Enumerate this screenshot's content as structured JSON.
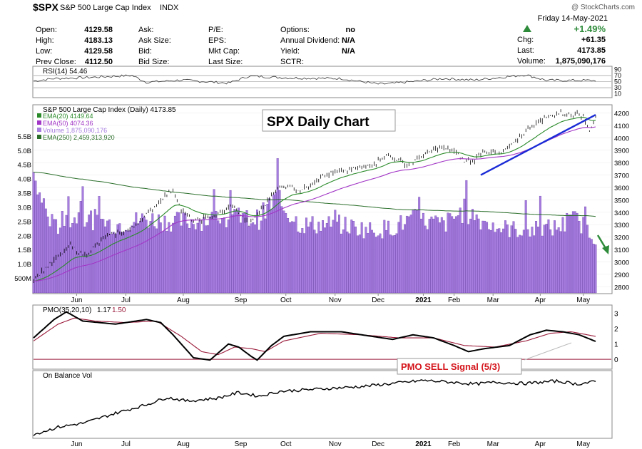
{
  "header": {
    "symbol": "$SPX",
    "name": "S&P 500 Large Cap Index",
    "exchange": "INDX",
    "source": "@ StockCharts.com",
    "date": "Friday  14-May-2021",
    "pct_change": "+1.49%",
    "chg_label": "Chg:",
    "chg": "+61.35",
    "last_label": "Last:",
    "last": "4173.85",
    "volume_label": "Volume:",
    "volume": "1,875,090,176",
    "col1": [
      [
        "Open:",
        "4129.58"
      ],
      [
        "High:",
        "4183.13"
      ],
      [
        "Low:",
        "4129.58"
      ],
      [
        "Prev Close:",
        "4112.50"
      ]
    ],
    "col2": [
      [
        "Ask:",
        ""
      ],
      [
        "Ask Size:",
        ""
      ],
      [
        "Bid:",
        ""
      ],
      [
        "Bid Size:",
        ""
      ]
    ],
    "col3": [
      [
        "P/E:",
        ""
      ],
      [
        "EPS:",
        ""
      ],
      [
        "Mkt Cap:",
        ""
      ],
      [
        "Last Size:",
        ""
      ]
    ],
    "col4": [
      [
        "Options:",
        "no"
      ],
      [
        "Annual Dividend:",
        "N/A"
      ],
      [
        "Yield:",
        "N/A"
      ],
      [
        "SCTR:",
        ""
      ]
    ],
    "up_color": "#2e8b3a"
  },
  "chart_data": [
    {
      "type": "line",
      "label": "RSI(14) 54.46",
      "ylim": [
        0,
        100
      ],
      "ticks": [
        "90",
        "70",
        "50",
        "30",
        "10"
      ],
      "reference_lines": [
        70,
        50,
        30
      ],
      "anchors": [
        [
          0,
          52
        ],
        [
          10,
          60
        ],
        [
          25,
          63
        ],
        [
          48,
          70
        ],
        [
          55,
          48
        ],
        [
          72,
          55
        ],
        [
          95,
          45
        ],
        [
          105,
          68
        ],
        [
          125,
          62
        ],
        [
          150,
          60
        ],
        [
          168,
          42
        ],
        [
          175,
          44
        ],
        [
          200,
          60
        ],
        [
          215,
          55
        ],
        [
          240,
          72
        ],
        [
          250,
          54
        ]
      ]
    },
    {
      "type": "line",
      "label": "S&P 500 Large Cap Index (Daily) 4173.85",
      "annotation": "SPX Daily Chart",
      "x_labels": [
        "Jun",
        "Jul",
        "Aug",
        "Sep",
        "Oct",
        "Nov",
        "Dec",
        "2021",
        "Feb",
        "Mar",
        "Apr",
        "May"
      ],
      "ylim": [
        2750,
        4260
      ],
      "y_ticks": [
        "4200",
        "4100",
        "4000",
        "3900",
        "3800",
        "3700",
        "3600",
        "3500",
        "3400",
        "3300",
        "3200",
        "3100",
        "3000",
        "2900",
        "2800"
      ],
      "volume_ylim": [
        0,
        6.6
      ],
      "volume_ticks": [
        [
          "5.5B",
          5.5
        ],
        [
          "5.0B",
          5.0
        ],
        [
          "4.5B",
          4.5
        ],
        [
          "4.0B",
          4.0
        ],
        [
          "3.5B",
          3.5
        ],
        [
          "3.0B",
          3.0
        ],
        [
          "2.5B",
          2.5
        ],
        [
          "2.0B",
          2.0
        ],
        [
          "1.5B",
          1.5
        ],
        [
          "1.0B",
          1.0
        ],
        [
          "500M",
          0.5
        ]
      ],
      "legend": [
        {
          "name": "EMA(20) 4149.64",
          "color": "#2a8a2a"
        },
        {
          "name": "EMA(50) 4074.36",
          "color": "#a236c6"
        },
        {
          "name": "Volume 1,875,090,176",
          "color": "#a77de0"
        },
        {
          "name": "EMA(250) 2,459,313,920",
          "color": "#2a6e2a"
        }
      ],
      "price_anchors": [
        [
          0,
          2860
        ],
        [
          8,
          2980
        ],
        [
          18,
          3130
        ],
        [
          25,
          3050
        ],
        [
          35,
          3200
        ],
        [
          48,
          3270
        ],
        [
          55,
          3380
        ],
        [
          62,
          3500
        ],
        [
          68,
          3580
        ],
        [
          72,
          3420
        ],
        [
          78,
          3330
        ],
        [
          90,
          3380
        ],
        [
          97,
          3460
        ],
        [
          105,
          3300
        ],
        [
          112,
          3440
        ],
        [
          118,
          3590
        ],
        [
          125,
          3620
        ],
        [
          130,
          3570
        ],
        [
          140,
          3690
        ],
        [
          150,
          3730
        ],
        [
          160,
          3760
        ],
        [
          167,
          3800
        ],
        [
          172,
          3860
        ],
        [
          177,
          3830
        ],
        [
          182,
          3780
        ],
        [
          192,
          3880
        ],
        [
          198,
          3920
        ],
        [
          205,
          3890
        ],
        [
          210,
          3810
        ],
        [
          215,
          3820
        ],
        [
          220,
          3900
        ],
        [
          228,
          3870
        ],
        [
          235,
          3970
        ],
        [
          240,
          4060
        ],
        [
          247,
          4140
        ],
        [
          252,
          4180
        ],
        [
          257,
          4200
        ],
        [
          263,
          4180
        ],
        [
          265,
          4220
        ],
        [
          268,
          4160
        ],
        [
          271,
          4060
        ],
        [
          274,
          4170
        ]
      ],
      "volume_anchors": [
        [
          0,
          4.0
        ],
        [
          5,
          3.1
        ],
        [
          10,
          2.3
        ],
        [
          22,
          2.7
        ],
        [
          40,
          2.4
        ],
        [
          55,
          2.6
        ],
        [
          70,
          2.5
        ],
        [
          90,
          2.6
        ],
        [
          110,
          2.6
        ],
        [
          118,
          3.3
        ],
        [
          130,
          2.4
        ],
        [
          150,
          2.4
        ],
        [
          165,
          2.2
        ],
        [
          175,
          2.3
        ],
        [
          185,
          2.6
        ],
        [
          200,
          2.4
        ],
        [
          210,
          2.9
        ],
        [
          225,
          2.3
        ],
        [
          240,
          2.2
        ],
        [
          255,
          2.3
        ],
        [
          265,
          2.6
        ],
        [
          274,
          1.9
        ]
      ],
      "trendline": "blue support line",
      "arrow": "green down arrow"
    },
    {
      "type": "line",
      "label": "PMO(35,20,10) 1.17, 1.50",
      "label_values": [
        "1.17",
        "1.50"
      ],
      "annotation": "PMO SELL Signal (5/3)",
      "ylim": [
        -0.6,
        3.5
      ],
      "y_ticks": [
        "3",
        "2",
        "1",
        "0"
      ],
      "pmo_anchors": [
        [
          0,
          1.4
        ],
        [
          10,
          2.6
        ],
        [
          16,
          3.1
        ],
        [
          24,
          2.5
        ],
        [
          40,
          2.3
        ],
        [
          55,
          2.6
        ],
        [
          62,
          2.4
        ],
        [
          68,
          1.6
        ],
        [
          78,
          0.1
        ],
        [
          86,
          -0.05
        ],
        [
          95,
          1.0
        ],
        [
          100,
          0.8
        ],
        [
          106,
          0.2
        ],
        [
          109,
          -0.05
        ],
        [
          116,
          0.9
        ],
        [
          122,
          1.5
        ],
        [
          135,
          1.8
        ],
        [
          150,
          1.8
        ],
        [
          165,
          1.5
        ],
        [
          175,
          1.3
        ],
        [
          185,
          1.6
        ],
        [
          195,
          1.4
        ],
        [
          205,
          0.9
        ],
        [
          212,
          0.5
        ],
        [
          220,
          0.7
        ],
        [
          232,
          0.9
        ],
        [
          242,
          1.6
        ],
        [
          250,
          1.9
        ],
        [
          258,
          1.8
        ],
        [
          266,
          1.6
        ],
        [
          274,
          1.17
        ]
      ],
      "signal_anchors": [
        [
          0,
          1.2
        ],
        [
          12,
          2.3
        ],
        [
          20,
          2.7
        ],
        [
          30,
          2.5
        ],
        [
          45,
          2.4
        ],
        [
          60,
          2.5
        ],
        [
          72,
          1.5
        ],
        [
          82,
          0.5
        ],
        [
          90,
          0.3
        ],
        [
          98,
          0.8
        ],
        [
          106,
          0.7
        ],
        [
          113,
          0.5
        ],
        [
          122,
          1.2
        ],
        [
          140,
          1.7
        ],
        [
          160,
          1.6
        ],
        [
          178,
          1.4
        ],
        [
          195,
          1.4
        ],
        [
          210,
          0.9
        ],
        [
          225,
          0.8
        ],
        [
          240,
          1.2
        ],
        [
          252,
          1.7
        ],
        [
          262,
          1.8
        ],
        [
          274,
          1.5
        ]
      ]
    },
    {
      "type": "line",
      "label": "On Balance Vol",
      "x_labels": [
        "Jun",
        "Jul",
        "Aug",
        "Sep",
        "Oct",
        "Nov",
        "Dec",
        "2021",
        "Feb",
        "Mar",
        "Apr",
        "May"
      ],
      "ylim": [
        0,
        100
      ],
      "anchors": [
        [
          0,
          3
        ],
        [
          12,
          15
        ],
        [
          25,
          22
        ],
        [
          40,
          38
        ],
        [
          55,
          52
        ],
        [
          65,
          64
        ],
        [
          75,
          58
        ],
        [
          90,
          63
        ],
        [
          100,
          72
        ],
        [
          110,
          66
        ],
        [
          120,
          74
        ],
        [
          140,
          78
        ],
        [
          160,
          82
        ],
        [
          175,
          87
        ],
        [
          190,
          92
        ],
        [
          200,
          90
        ],
        [
          215,
          86
        ],
        [
          225,
          89
        ],
        [
          240,
          87
        ],
        [
          255,
          91
        ],
        [
          265,
          86
        ],
        [
          274,
          90
        ]
      ]
    }
  ]
}
